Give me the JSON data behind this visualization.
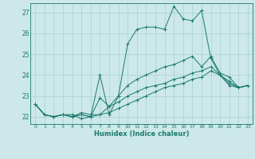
{
  "title": "",
  "xlabel": "Humidex (Indice chaleur)",
  "ylabel": "",
  "background_color": "#cce8e8",
  "grid_color": "#aad0d0",
  "line_color": "#1a7a6e",
  "xlim": [
    -0.5,
    23.5
  ],
  "ylim": [
    21.65,
    27.45
  ],
  "yticks": [
    22,
    23,
    24,
    25,
    26,
    27
  ],
  "xticks": [
    0,
    1,
    2,
    3,
    4,
    5,
    6,
    7,
    8,
    9,
    10,
    11,
    12,
    13,
    14,
    15,
    16,
    17,
    18,
    19,
    20,
    21,
    22,
    23
  ],
  "series": [
    [
      22.6,
      22.1,
      22.0,
      22.1,
      22.1,
      21.9,
      22.0,
      24.0,
      22.1,
      23.0,
      25.5,
      26.2,
      26.3,
      26.3,
      26.2,
      27.3,
      26.7,
      26.6,
      27.1,
      24.8,
      24.0,
      23.5,
      23.4,
      23.5
    ],
    [
      22.6,
      22.1,
      22.0,
      22.1,
      22.0,
      22.2,
      22.1,
      22.1,
      22.5,
      23.0,
      23.5,
      23.8,
      24.0,
      24.2,
      24.4,
      24.5,
      24.7,
      24.9,
      24.4,
      24.9,
      24.1,
      23.9,
      23.4,
      23.5
    ],
    [
      22.6,
      22.1,
      22.0,
      22.1,
      22.0,
      22.1,
      22.0,
      22.9,
      22.5,
      22.7,
      23.0,
      23.2,
      23.4,
      23.5,
      23.6,
      23.8,
      23.9,
      24.1,
      24.2,
      24.4,
      24.0,
      23.7,
      23.4,
      23.5
    ],
    [
      22.6,
      22.1,
      22.0,
      22.1,
      22.0,
      22.1,
      22.0,
      22.1,
      22.2,
      22.4,
      22.6,
      22.8,
      23.0,
      23.2,
      23.4,
      23.5,
      23.6,
      23.8,
      23.9,
      24.2,
      24.0,
      23.6,
      23.4,
      23.5
    ]
  ]
}
